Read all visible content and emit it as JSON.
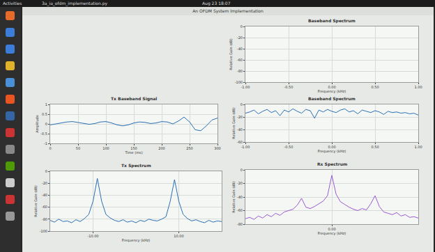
{
  "screen": {
    "top_bar": {
      "left": "Activities",
      "tab": "3a_ia_ofdm_implementation.py",
      "clock": "Aug 23 18:07"
    },
    "window_title": "An OFDM System Implementation"
  },
  "chart_data": [
    {
      "type": "line",
      "title": "Baseband Spectrum",
      "x_label": "Frequency (kHz)",
      "y_label": "Relative Gain (dB)",
      "x": [],
      "values": [],
      "color": "#2a6fb5",
      "xlim": [
        -1,
        1
      ],
      "xticks": [
        {
          "value": -1,
          "label": "-1.00"
        },
        {
          "value": -0.5,
          "label": "-0.50"
        },
        {
          "value": 0,
          "label": "0.00"
        },
        {
          "value": 0.5,
          "label": "0.50"
        },
        {
          "value": 1,
          "label": "1.00"
        }
      ],
      "ylim": [
        -100,
        0
      ],
      "yticks": [
        0,
        -20,
        -40,
        -60,
        -80,
        -100
      ],
      "grid": true
    },
    {
      "type": "line",
      "title": "Tx Baseband Signal",
      "x_label": "Time (ms)",
      "y_label": "Amplitude",
      "x": [
        0,
        10,
        20,
        30,
        40,
        50,
        60,
        70,
        80,
        90,
        100,
        110,
        120,
        130,
        140,
        150,
        160,
        170,
        180,
        190,
        200,
        210,
        220,
        230,
        240,
        250,
        260,
        270,
        280,
        290,
        300
      ],
      "values": [
        -0.05,
        0.0,
        0.05,
        0.1,
        0.12,
        0.08,
        0.02,
        -0.02,
        0.02,
        0.1,
        0.12,
        0.05,
        -0.05,
        -0.1,
        -0.05,
        0.05,
        0.1,
        0.08,
        0.02,
        0.05,
        0.12,
        0.1,
        0.0,
        0.15,
        0.35,
        0.1,
        -0.3,
        -0.35,
        -0.1,
        0.2,
        0.3
      ],
      "color": "#2a6fb5",
      "xlim": [
        0,
        300
      ],
      "xticks": [
        0,
        50,
        100,
        150,
        200,
        250,
        300
      ],
      "ylim": [
        -1,
        1
      ],
      "yticks": [
        -1,
        -0.5,
        0,
        0.5,
        1
      ],
      "grid": true
    },
    {
      "type": "line",
      "title": "Baseband Spectrum",
      "x_label": "Frequency (kHz)",
      "y_label": "Relative Gain (dB)",
      "x": [
        -1,
        -0.95,
        -0.9,
        -0.85,
        -0.8,
        -0.75,
        -0.7,
        -0.65,
        -0.6,
        -0.55,
        -0.5,
        -0.45,
        -0.4,
        -0.35,
        -0.3,
        -0.25,
        -0.2,
        -0.15,
        -0.1,
        -0.05,
        0,
        0.05,
        0.1,
        0.15,
        0.2,
        0.25,
        0.3,
        0.35,
        0.4,
        0.45,
        0.5,
        0.55,
        0.6,
        0.65,
        0.7,
        0.75,
        0.8,
        0.85,
        0.9,
        0.95,
        1
      ],
      "values": [
        -14,
        -12,
        -9,
        -15,
        -11,
        -8,
        -13,
        -10,
        -18,
        -9,
        -12,
        -7,
        -11,
        -14,
        -8,
        -10,
        -22,
        -9,
        -12,
        -8,
        -11,
        -13,
        -9,
        -7,
        -12,
        -10,
        -15,
        -9,
        -11,
        -13,
        -10,
        -12,
        -16,
        -11,
        -13,
        -12,
        -14,
        -13,
        -15,
        -14,
        -17
      ],
      "color": "#2a6fb5",
      "xlim": [
        -1,
        1
      ],
      "xticks": [
        {
          "value": -1,
          "label": "-1.00"
        },
        {
          "value": -0.5,
          "label": "-0.50"
        },
        {
          "value": 0,
          "label": "0.00"
        },
        {
          "value": 0.5,
          "label": "0.50"
        },
        {
          "value": 1,
          "label": "1.00"
        }
      ],
      "ylim": [
        -60,
        0
      ],
      "yticks": [
        0,
        -20,
        -40,
        -60
      ],
      "grid": true
    },
    {
      "type": "line",
      "title": "Tx Spectrum",
      "x_label": "Frequency (kHz)",
      "y_label": "Relative Gain (dB)",
      "x": [
        -20,
        -19,
        -18,
        -17,
        -16,
        -15,
        -14,
        -13,
        -12,
        -11,
        -10,
        -9,
        -8,
        -7,
        -6,
        -5,
        -4,
        -3,
        -2,
        -1,
        0,
        1,
        2,
        3,
        4,
        5,
        6,
        7,
        8,
        9,
        10,
        11,
        12,
        13,
        14,
        15,
        16,
        17,
        18,
        19,
        20
      ],
      "values": [
        -82,
        -85,
        -80,
        -84,
        -83,
        -86,
        -81,
        -84,
        -79,
        -72,
        -50,
        -12,
        -50,
        -72,
        -78,
        -82,
        -84,
        -81,
        -85,
        -83,
        -86,
        -82,
        -84,
        -80,
        -82,
        -83,
        -80,
        -76,
        -50,
        -14,
        -50,
        -72,
        -79,
        -83,
        -81,
        -84,
        -86,
        -82,
        -85,
        -83,
        -84
      ],
      "color": "#2a6fb5",
      "xlim": [
        -20,
        20
      ],
      "xticks": [
        {
          "value": -10,
          "label": "-10.00"
        },
        {
          "value": 10,
          "label": "10.00"
        }
      ],
      "ylim": [
        -100,
        0
      ],
      "yticks": [
        0,
        -20,
        -40,
        -60,
        -80,
        -100
      ],
      "grid": true
    },
    {
      "type": "line",
      "title": "Rx Spectrum",
      "x_label": "Frequency (kHz)",
      "y_label": "Relative Gain (dB)",
      "x": [
        -1,
        -0.95,
        -0.9,
        -0.85,
        -0.8,
        -0.75,
        -0.7,
        -0.65,
        -0.6,
        -0.55,
        -0.5,
        -0.45,
        -0.4,
        -0.35,
        -0.3,
        -0.25,
        -0.2,
        -0.15,
        -0.1,
        -0.05,
        0,
        0.05,
        0.1,
        0.15,
        0.2,
        0.25,
        0.3,
        0.35,
        0.4,
        0.45,
        0.5,
        0.55,
        0.6,
        0.65,
        0.7,
        0.75,
        0.8,
        0.85,
        0.9,
        0.95,
        1
      ],
      "values": [
        -72,
        -70,
        -73,
        -68,
        -71,
        -66,
        -69,
        -64,
        -67,
        -62,
        -60,
        -58,
        -52,
        -42,
        -55,
        -57,
        -54,
        -50,
        -46,
        -38,
        -8,
        -36,
        -47,
        -51,
        -55,
        -58,
        -60,
        -57,
        -59,
        -50,
        -38,
        -54,
        -62,
        -64,
        -66,
        -63,
        -68,
        -66,
        -70,
        -69,
        -71
      ],
      "color": "#9b59d0",
      "xlim": [
        -1,
        1
      ],
      "xticks": [
        {
          "value": 0,
          "label": "0.00"
        }
      ],
      "ylim": [
        -80,
        0
      ],
      "yticks": [
        0,
        -20,
        -40,
        -60,
        -80
      ],
      "grid": true
    }
  ]
}
